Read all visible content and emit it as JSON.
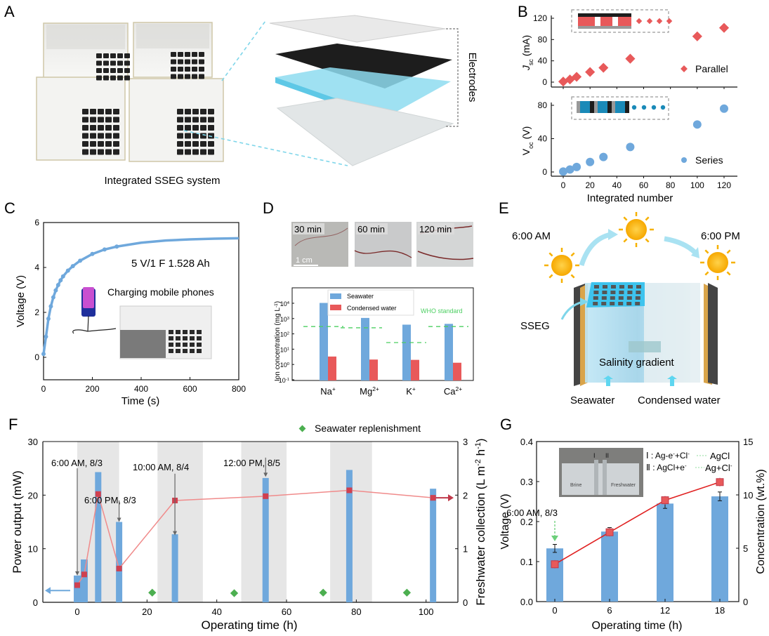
{
  "panels": {
    "A": {
      "letter": "A",
      "caption": "Integrated SSEG system",
      "exploded_label": "Electrodes"
    },
    "B": {
      "letter": "B"
    },
    "C": {
      "letter": "C"
    },
    "D": {
      "letter": "D",
      "photos": [
        "30 min",
        "60 min",
        "120 min"
      ],
      "scale_bar": "1 cm"
    },
    "E": {
      "letter": "E",
      "time_start": "6:00 AM",
      "time_end": "6:00 PM",
      "sseg_label": "SSEG",
      "gradient_label": "Salinity gradient",
      "seawater_label": "Seawater",
      "condensed_label": "Condensed water"
    },
    "F": {
      "letter": "F"
    },
    "G": {
      "letter": "G"
    }
  },
  "chart_data": [
    {
      "id": "B-top",
      "type": "scatter",
      "title": "",
      "xlabel": "Integrated number",
      "ylabel": "Jsc (mA)",
      "ylabel_main": "J",
      "ylabel_sub": "sc",
      "ylabel_unit": " (mA)",
      "x": [
        0,
        5,
        10,
        20,
        30,
        50,
        100,
        120
      ],
      "values": [
        1,
        5,
        10,
        19,
        27,
        44,
        86,
        102
      ],
      "legend": "Parallel",
      "legend_position": "right",
      "color": "#e8595a",
      "xlim": [
        -10,
        130
      ],
      "ylim": [
        -5,
        130
      ],
      "yticks": [
        0,
        40,
        80,
        120
      ]
    },
    {
      "id": "B-bottom",
      "type": "scatter",
      "xlabel": "Integrated number",
      "ylabel": "Voc (V)",
      "ylabel_main": "V",
      "ylabel_sub": "oc",
      "ylabel_unit": " (V)",
      "x": [
        0,
        5,
        10,
        20,
        30,
        50,
        100,
        120
      ],
      "values": [
        0.5,
        3,
        6,
        12,
        18,
        30,
        57,
        76
      ],
      "legend": "Series",
      "legend_position": "right",
      "color": "#6fa8dc",
      "xlim": [
        -10,
        130
      ],
      "ylim": [
        -5,
        85
      ],
      "yticks": [
        0,
        40,
        80
      ],
      "xticks": [
        0,
        20,
        40,
        60,
        80,
        100,
        120
      ]
    },
    {
      "id": "C",
      "type": "line",
      "xlabel": "Time (s)",
      "ylabel": "Voltage (V)",
      "annotation": "5 V/1 F  1.528 Ah",
      "inset_label": "Charging mobile phones",
      "x": [
        0,
        10,
        20,
        30,
        40,
        50,
        60,
        70,
        80,
        100,
        120,
        150,
        200,
        250,
        300,
        400,
        500,
        600,
        700,
        800
      ],
      "values": [
        0.15,
        0.92,
        1.72,
        2.27,
        2.67,
        2.98,
        3.22,
        3.43,
        3.6,
        3.86,
        4.06,
        4.3,
        4.6,
        4.8,
        4.93,
        5.1,
        5.2,
        5.25,
        5.28,
        5.3
      ],
      "color": "#6fa8dc",
      "xlim": [
        0,
        800
      ],
      "ylim": [
        -1,
        6
      ],
      "xticks": [
        0,
        200,
        400,
        600,
        800
      ],
      "yticks": [
        0,
        2,
        4,
        6
      ]
    },
    {
      "id": "D",
      "type": "bar",
      "ylabel": "Ion concentration (mg L-1)",
      "ylabel_text": "Ion concentration (mg L",
      "ylabel_sup": "-1",
      "yscale": "log",
      "categories": [
        "Na",
        "Mg",
        "K",
        "Ca"
      ],
      "category_sup": [
        "+",
        "2+",
        "+",
        "2+"
      ],
      "series": [
        {
          "name": "Seawater",
          "values": [
            10500,
            1100,
            400,
            450
          ],
          "color": "#6fa8dc"
        },
        {
          "name": "Condensed water",
          "values": [
            3.3,
            2.1,
            2.0,
            1.3
          ],
          "color": "#e8595a"
        }
      ],
      "who_standard": {
        "label": "WHO standard",
        "values": [
          300,
          250,
          27,
          300
        ],
        "color": "#4ccf62"
      },
      "ylim": [
        0.1,
        100000
      ],
      "yticks": [
        "10^4",
        "10^3",
        "10^2",
        "10^1",
        "10^0",
        "10^-1"
      ],
      "legend_position": "top-left"
    },
    {
      "id": "F",
      "type": "bar",
      "xlabel": "Operating time (h)",
      "ylabel": "Power output (mW)",
      "ylabel_right": "Freshwater collection (L m-2 h-1)",
      "ylabel_right_text": [
        "Freshwater collection (L m",
        "-2",
        " h",
        "-1",
        ")"
      ],
      "bars": {
        "x": [
          0,
          2,
          6,
          12,
          28,
          54,
          78,
          102
        ],
        "values": [
          5,
          8,
          24.3,
          15,
          12.7,
          23.2,
          24.7,
          21.2
        ],
        "color": "#6fa8dc"
      },
      "line": {
        "x": [
          0,
          2,
          6,
          12,
          28,
          54,
          78,
          102
        ],
        "values": [
          0.32,
          0.52,
          2.02,
          0.63,
          1.9,
          1.98,
          2.09,
          1.95
        ],
        "color": "#e8595a"
      },
      "replenishment": {
        "label": "Seawater replenishment",
        "x": [
          21.5,
          45,
          70.5,
          94.5
        ],
        "values": [
          0.18,
          0.17,
          0.18,
          0.18
        ],
        "color": "#4caf50"
      },
      "shaded_ranges": [
        [
          0,
          12
        ],
        [
          23,
          36
        ],
        [
          47,
          60
        ],
        [
          72.5,
          84.5
        ]
      ],
      "annotations": [
        {
          "text": "6:00 AM, 8/3",
          "x": 0,
          "y_top": 25,
          "y_tip": 5
        },
        {
          "text": "6:00 PM, 8/3",
          "x": 12,
          "y_top": 19,
          "y_tip": 15
        },
        {
          "text": "10:00 AM, 8/4",
          "x": 28,
          "y_top": 24,
          "y_tip": 12.5
        },
        {
          "text": "12:00 PM, 8/5",
          "x": 54,
          "y_top": 27,
          "y_tip": 23.4
        }
      ],
      "xlim": [
        -10,
        108
      ],
      "ylim": [
        0,
        30
      ],
      "ylim_right": [
        0,
        3
      ],
      "xticks": [
        0,
        20,
        40,
        60,
        80,
        100
      ],
      "yticks": [
        0,
        10,
        20,
        30
      ],
      "yticks_right": [
        0,
        1,
        2,
        3
      ]
    },
    {
      "id": "G",
      "type": "bar",
      "xlabel": "Operating time (h)",
      "ylabel": "Voltage (V)",
      "ylabel_right": "Concentration (wt.%)",
      "categories": [
        "0",
        "6",
        "12",
        "18"
      ],
      "bars": {
        "values": [
          0.133,
          0.175,
          0.245,
          0.263
        ],
        "errors": [
          0.01,
          0.01,
          0.012,
          0.011
        ],
        "color": "#6fa8dc"
      },
      "line": {
        "values": [
          3.5,
          6.5,
          9.5,
          11.2
        ],
        "errors": [
          0.4,
          0.4,
          0.4,
          0.4
        ],
        "color": "#e8595a"
      },
      "annotation": "6:00 AM, 8/3",
      "reaction_1": "I : Ag-e-+Cl- → AgCl",
      "reaction_2": "II : AgCl+e- → Ag+Cl-",
      "reaction_1_parts": [
        "Ⅰ : Ag-e",
        "-",
        "+Cl",
        "-",
        "AgCl"
      ],
      "reaction_2_parts": [
        "Ⅱ : AgCl+e",
        "-",
        "Ag+Cl",
        "-"
      ],
      "photo_labels": [
        "Brine",
        "Freshwater"
      ],
      "electrode_labels": [
        "I",
        "II"
      ],
      "ylim": [
        0,
        0.4
      ],
      "ylim_right": [
        0,
        15
      ],
      "yticks": [
        "0.0",
        "0.1",
        "0.2",
        "0.3",
        "0.4"
      ],
      "yticks_right": [
        0,
        5,
        10,
        15
      ]
    }
  ]
}
